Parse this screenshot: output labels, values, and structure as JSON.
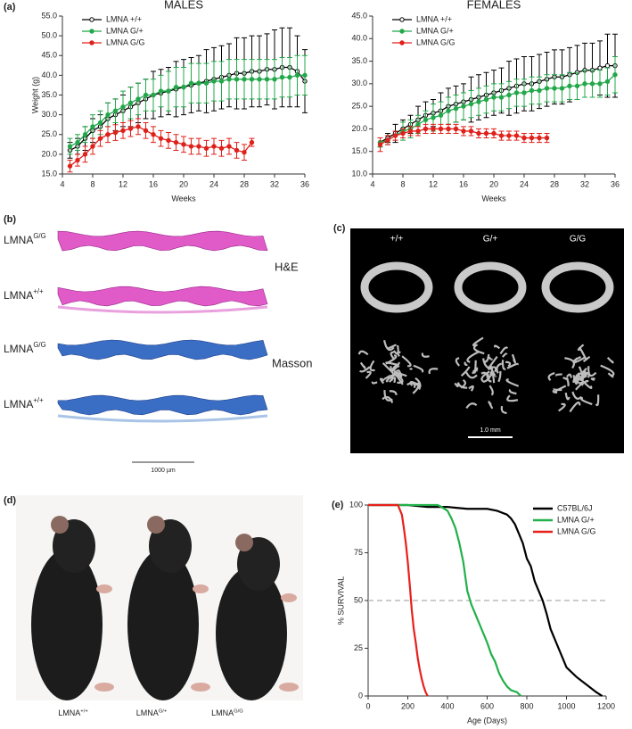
{
  "chart_data": [
    {
      "type": "line",
      "title": "MALES",
      "xlabel": "Weeks",
      "ylabel": "Weight (g)",
      "x": [
        5,
        6,
        7,
        8,
        9,
        10,
        11,
        12,
        13,
        14,
        15,
        16,
        17,
        18,
        19,
        20,
        21,
        22,
        23,
        24,
        25,
        26,
        27,
        28,
        29,
        30,
        31,
        32,
        33,
        34,
        35,
        36
      ],
      "xlim": [
        4,
        36
      ],
      "xticks": [
        4,
        8,
        12,
        16,
        20,
        24,
        28,
        32,
        36
      ],
      "ylim": [
        15,
        55
      ],
      "yticks": [
        {
          "value": 15,
          "label": "15.0"
        },
        {
          "value": 20,
          "label": "20.0"
        },
        {
          "value": 25,
          "label": "25.0"
        },
        {
          "value": 30,
          "label": "30.0"
        },
        {
          "value": 35,
          "label": "35.0"
        },
        {
          "value": 40,
          "label": "40.0"
        },
        {
          "value": 45,
          "label": "45.0"
        },
        {
          "value": 50,
          "label": "50.0"
        },
        {
          "value": 55,
          "label": "55.0"
        }
      ],
      "legend": "upper left",
      "series": [
        {
          "name": "LMNA +/+",
          "color": "#000000",
          "marker": "open",
          "values": [
            21,
            22,
            24,
            26,
            27,
            29,
            30,
            31,
            32,
            33,
            34,
            35,
            35.5,
            36,
            36.5,
            37,
            37.5,
            38,
            38.5,
            39,
            39.5,
            40,
            40.5,
            40.5,
            41,
            41,
            41.5,
            41.5,
            42,
            42,
            41,
            38.5
          ],
          "errors": [
            2,
            2,
            3,
            3,
            3,
            4,
            4,
            4,
            5,
            5,
            5,
            6,
            6,
            6,
            7,
            7,
            7,
            7,
            8,
            8,
            8,
            8,
            9,
            9,
            9,
            9,
            9,
            10,
            10,
            10,
            9,
            8
          ]
        },
        {
          "name": "LMNA G/+",
          "color": "#22a84a",
          "marker": "filled",
          "values": [
            22,
            23,
            25,
            27,
            28,
            30,
            31,
            32,
            33,
            34,
            35,
            35,
            36,
            36,
            37,
            37,
            38,
            38,
            38,
            38.5,
            38.5,
            39,
            39,
            39,
            39,
            39,
            39,
            39,
            39.5,
            39.5,
            40,
            40
          ],
          "errors": [
            2,
            2,
            2,
            3,
            3,
            3,
            3,
            4,
            4,
            4,
            4,
            4,
            4,
            5,
            5,
            5,
            5,
            5,
            5,
            5,
            5,
            5,
            5,
            5,
            5,
            5,
            5,
            5,
            5,
            5,
            5,
            5
          ]
        },
        {
          "name": "LMNA G/G",
          "color": "#e0201b",
          "marker": "filled",
          "values": [
            17,
            18.5,
            20,
            22,
            24,
            25,
            25.5,
            26,
            26.5,
            27,
            26,
            25,
            24,
            23.5,
            23,
            22.5,
            22,
            22,
            21.5,
            22,
            21.5,
            22,
            21,
            20.5,
            23,
            null,
            null,
            null,
            null,
            null,
            null,
            null
          ],
          "errors": [
            1.5,
            1.5,
            2,
            2,
            2,
            2,
            2,
            2,
            2,
            2,
            2,
            2,
            2,
            2,
            2,
            2,
            2,
            2,
            2,
            2,
            2,
            2,
            2,
            2,
            1,
            null,
            null,
            null,
            null,
            null,
            null,
            null
          ]
        }
      ]
    },
    {
      "type": "line",
      "title": "FEMALES",
      "xlabel": "Weeks",
      "x": [
        5,
        6,
        7,
        8,
        9,
        10,
        11,
        12,
        13,
        14,
        15,
        16,
        17,
        18,
        19,
        20,
        21,
        22,
        23,
        24,
        25,
        26,
        27,
        28,
        29,
        30,
        31,
        32,
        33,
        34,
        35,
        36
      ],
      "xlim": [
        4,
        36
      ],
      "xticks": [
        4,
        8,
        12,
        16,
        20,
        24,
        28,
        32,
        36
      ],
      "ylim": [
        10,
        45
      ],
      "yticks": [
        {
          "value": 10,
          "label": "10.0"
        },
        {
          "value": 15,
          "label": "15.0"
        },
        {
          "value": 20,
          "label": "20.0"
        },
        {
          "value": 25,
          "label": "25.0"
        },
        {
          "value": 30,
          "label": "30.0"
        },
        {
          "value": 35,
          "label": "35.0"
        },
        {
          "value": 40,
          "label": "40.0"
        },
        {
          "value": 45,
          "label": "45.0"
        }
      ],
      "legend": "upper left",
      "series": [
        {
          "name": "LMNA +/+",
          "color": "#000000",
          "marker": "open",
          "values": [
            17,
            18,
            19,
            20,
            21,
            22,
            23,
            23.5,
            24,
            25,
            25.5,
            26,
            26.5,
            27,
            27.5,
            28,
            28.5,
            29,
            29.5,
            30,
            30,
            30.5,
            31,
            31.5,
            31.5,
            32,
            32.5,
            33,
            33,
            33.5,
            34,
            34
          ],
          "errors": [
            1,
            1,
            2,
            2,
            2,
            3,
            3,
            3,
            4,
            4,
            4,
            4,
            5,
            5,
            5,
            5,
            5,
            6,
            6,
            6,
            6,
            6,
            6,
            6,
            6,
            6,
            6,
            6,
            6,
            6,
            7,
            7
          ]
        },
        {
          "name": "LMNA G/+",
          "color": "#22a84a",
          "marker": "filled",
          "values": [
            17,
            17.5,
            18.5,
            19.5,
            20,
            21,
            22,
            22.5,
            23,
            24,
            24.5,
            25,
            25.5,
            26,
            26.5,
            27,
            27,
            27.5,
            28,
            28,
            28.5,
            28.5,
            29,
            29,
            29,
            29.5,
            29.5,
            30,
            30,
            30,
            30.5,
            32
          ],
          "errors": [
            1,
            1,
            1,
            2,
            2,
            2,
            2,
            3,
            3,
            3,
            3,
            3,
            3,
            3,
            3,
            3,
            3,
            3,
            3,
            3,
            3,
            3,
            3,
            3,
            3,
            3,
            3,
            3,
            3,
            3,
            3,
            4
          ]
        },
        {
          "name": "LMNA G/G",
          "color": "#e0201b",
          "marker": "filled",
          "values": [
            16.5,
            17.5,
            18.5,
            19,
            19.5,
            19.5,
            20,
            20,
            20,
            20,
            20,
            19.5,
            19.5,
            19,
            19,
            19,
            18.5,
            18.5,
            18.5,
            18,
            18,
            18,
            18,
            null,
            null,
            null,
            null,
            null,
            null,
            null,
            null,
            null
          ],
          "errors": [
            1.5,
            1,
            1,
            1,
            1,
            1,
            1,
            1,
            1,
            1,
            1,
            1,
            1,
            1,
            1,
            1,
            1,
            1,
            1,
            1,
            1,
            1,
            1,
            null,
            null,
            null,
            null,
            null,
            null,
            null,
            null,
            null
          ]
        }
      ]
    },
    {
      "type": "line",
      "xlabel": "Age (Days)",
      "ylabel": "% SURVIVAL",
      "xlim": [
        0,
        1200
      ],
      "xticks": [
        0,
        200,
        400,
        600,
        800,
        1000,
        1200
      ],
      "ylim": [
        0,
        100
      ],
      "yticks": [
        0,
        25,
        50,
        75,
        100
      ],
      "hline": 50,
      "legend": "upper right",
      "series": [
        {
          "name": "C57BL/6J",
          "color": "#000000",
          "x": [
            0,
            100,
            200,
            300,
            400,
            500,
            600,
            650,
            700,
            720,
            740,
            760,
            780,
            800,
            820,
            840,
            860,
            880,
            900,
            920,
            940,
            960,
            980,
            1000,
            1050,
            1100,
            1150,
            1180
          ],
          "values": [
            100,
            100,
            100,
            99,
            99,
            98,
            98,
            97,
            95,
            93,
            90,
            85,
            80,
            72,
            68,
            60,
            55,
            50,
            43,
            35,
            30,
            25,
            20,
            15,
            10,
            6,
            2,
            0
          ]
        },
        {
          "name": "LMNA G/+",
          "color": "#22b04a",
          "x": [
            0,
            350,
            370,
            400,
            420,
            440,
            460,
            480,
            500,
            520,
            540,
            560,
            580,
            600,
            620,
            640,
            660,
            680,
            700,
            720,
            750,
            770
          ],
          "values": [
            100,
            100,
            99,
            97,
            93,
            88,
            80,
            70,
            55,
            48,
            43,
            38,
            33,
            28,
            22,
            18,
            12,
            8,
            5,
            3,
            2,
            0
          ]
        },
        {
          "name": "LMNA G/G",
          "color": "#e8201b",
          "x": [
            0,
            150,
            170,
            180,
            190,
            200,
            210,
            220,
            230,
            240,
            250,
            260,
            270,
            280,
            290,
            300
          ],
          "values": [
            100,
            100,
            95,
            88,
            80,
            70,
            58,
            45,
            35,
            28,
            20,
            14,
            9,
            5,
            2,
            0
          ]
        }
      ]
    }
  ],
  "figure": {
    "panel_labels": [
      "(a)",
      "(b)",
      "(c)",
      "(d)",
      "(e)"
    ],
    "histology": {
      "rows": [
        {
          "base": "LMNA",
          "sup": "G/G"
        },
        {
          "base": "LMNA",
          "sup": "+/+"
        },
        {
          "base": "LMNA",
          "sup": "G/G"
        },
        {
          "base": "LMNA",
          "sup": "+/+"
        }
      ],
      "stains": [
        "H&E",
        "Masson"
      ],
      "scale_bar": "1000 µm"
    },
    "micro_ct": {
      "genotypes": [
        "+/+",
        "G/+",
        "G/G"
      ],
      "scale_bar": "1.0 mm"
    },
    "photo": {
      "labels": [
        {
          "base": "LMNA",
          "sup": "+/+"
        },
        {
          "base": "LMNA",
          "sup": "G/+"
        },
        {
          "base": "LMNA",
          "sup": "G/G"
        }
      ]
    }
  }
}
